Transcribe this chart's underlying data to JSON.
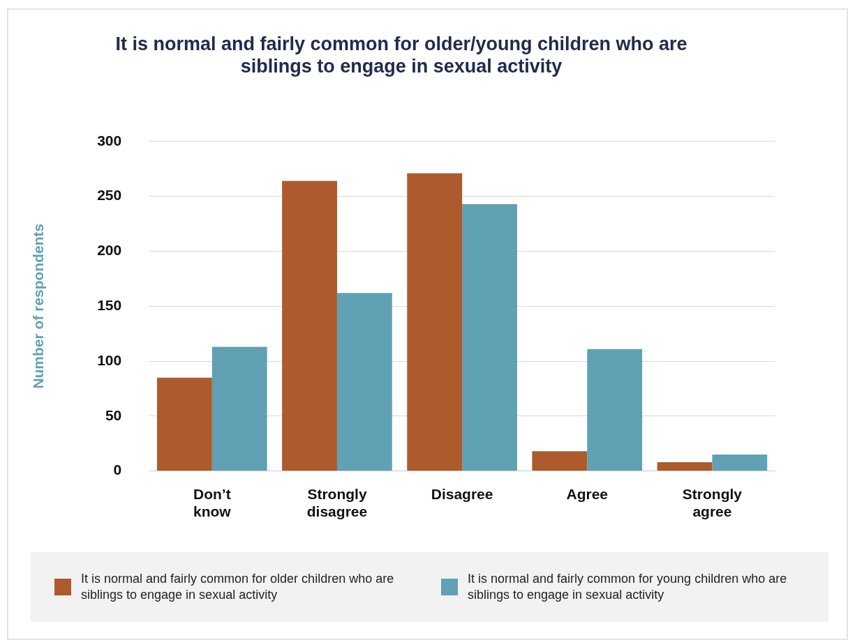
{
  "chart_data": {
    "type": "bar",
    "title": "It is normal and fairly common for older/young children who are siblings to engage in sexual activity",
    "ylabel": "Number of respondents",
    "categories": [
      "Don’t know",
      "Strongly disagree",
      "Disagree",
      "Agree",
      "Strongly agree"
    ],
    "series": [
      {
        "name": "It is normal and fairly common for older children who are siblings to engage in sexual activity",
        "color": "#ad5a2c",
        "values": [
          85,
          264,
          271,
          18,
          8
        ]
      },
      {
        "name": "It is normal and fairly common for young children who are siblings to engage in sexual activity",
        "color": "#60a1b3",
        "values": [
          113,
          162,
          243,
          111,
          15
        ]
      }
    ],
    "ylim": [
      0,
      300
    ],
    "yticks": [
      0,
      50,
      100,
      150,
      200,
      250,
      300
    ],
    "grid": "y",
    "legend": "bottom"
  }
}
